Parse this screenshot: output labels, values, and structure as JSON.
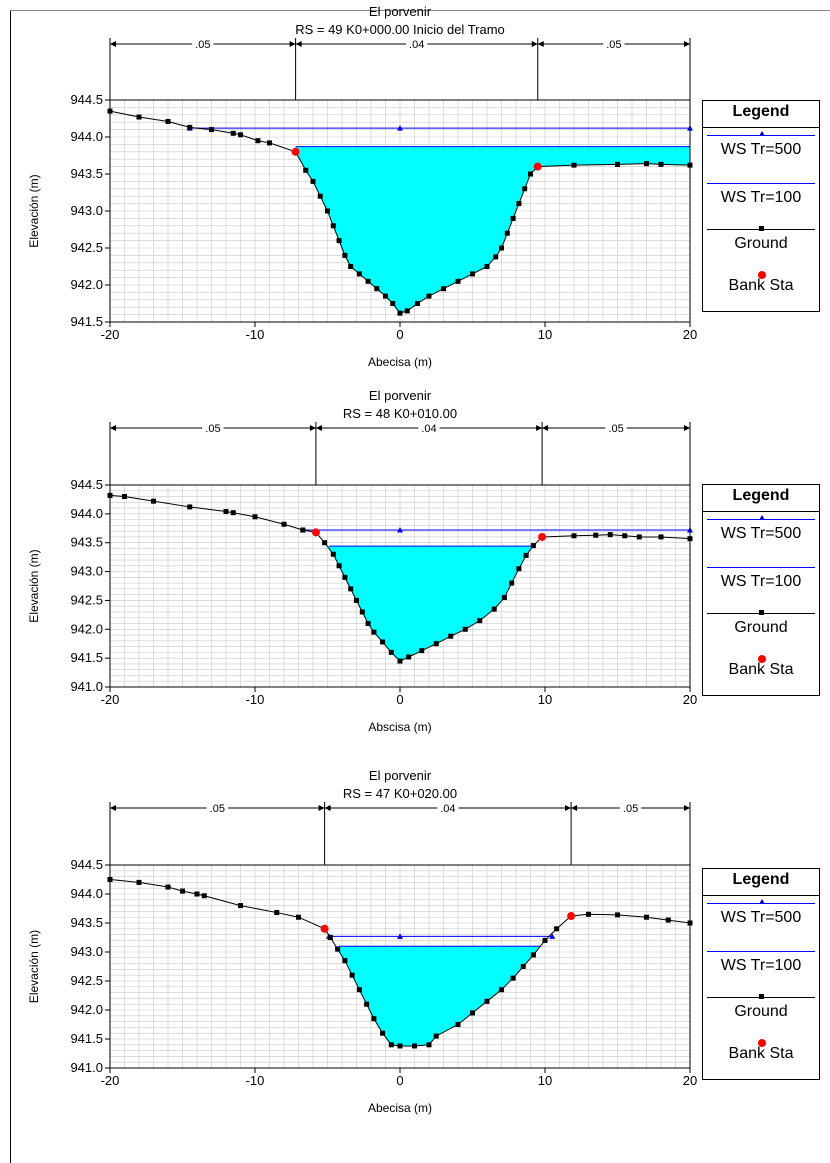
{
  "colors": {
    "water_fill": "#00ffff",
    "ws500": "#0000ff",
    "ws100": "#0000ff",
    "ground": "#000000",
    "bank": "#ff0000",
    "grid": "#c8c8c8"
  },
  "legend": {
    "title": "Legend",
    "items": [
      {
        "label": "WS Tr=500",
        "icon": "blue-line-triangle-marker"
      },
      {
        "label": "WS Tr=100",
        "icon": "blue-line"
      },
      {
        "label": "Ground",
        "icon": "black-line-square-marker"
      },
      {
        "label": "Bank Sta",
        "icon": "red-dot"
      }
    ]
  },
  "chart_data": [
    {
      "type": "area",
      "title": "El porvenir",
      "subtitle": "RS = 49  K0+000.00 Inicio del Tramo",
      "xlabel": "Abecisa (m)",
      "ylabel": "Elevación (m)",
      "xlim": [
        -20,
        20
      ],
      "ylim": [
        941.5,
        944.5
      ],
      "xticks": [
        "-20",
        "-10",
        "0",
        "10",
        "20"
      ],
      "yticks": [
        "941.5",
        "942.0",
        "942.5",
        "943.0",
        "943.5",
        "944.0",
        "944.5"
      ],
      "manning": [
        {
          "from": -20,
          "to": -7.2,
          "label": ".05"
        },
        {
          "from": -7.2,
          "to": 9.5,
          "label": ".04"
        },
        {
          "from": 9.5,
          "to": 20,
          "label": ".05"
        }
      ],
      "ws500": 944.12,
      "ws500_x": [
        -14.5,
        20
      ],
      "ws500_markers": [
        -14.5,
        0,
        20
      ],
      "ws100": 943.87,
      "ws100_x": [
        -7.2,
        20
      ],
      "ground": [
        [
          -20,
          944.35
        ],
        [
          -18,
          944.27
        ],
        [
          -16,
          944.21
        ],
        [
          -14.5,
          944.13
        ],
        [
          -13,
          944.1
        ],
        [
          -11.5,
          944.05
        ],
        [
          -11,
          944.03
        ],
        [
          -9.8,
          943.95
        ],
        [
          -9,
          943.92
        ],
        [
          -7.2,
          943.8
        ],
        [
          -6.5,
          943.55
        ],
        [
          -6,
          943.4
        ],
        [
          -5.5,
          943.2
        ],
        [
          -5,
          943.0
        ],
        [
          -4.6,
          942.8
        ],
        [
          -4.2,
          942.6
        ],
        [
          -3.8,
          942.4
        ],
        [
          -3.4,
          942.25
        ],
        [
          -2.8,
          942.15
        ],
        [
          -2.2,
          942.05
        ],
        [
          -1.6,
          941.95
        ],
        [
          -1,
          941.85
        ],
        [
          -0.5,
          941.75
        ],
        [
          0,
          941.62
        ],
        [
          0.5,
          941.65
        ],
        [
          1.2,
          941.75
        ],
        [
          2,
          941.85
        ],
        [
          3,
          941.95
        ],
        [
          4,
          942.05
        ],
        [
          5,
          942.15
        ],
        [
          6,
          942.25
        ],
        [
          6.6,
          942.38
        ],
        [
          7,
          942.5
        ],
        [
          7.4,
          942.7
        ],
        [
          7.8,
          942.9
        ],
        [
          8.2,
          943.1
        ],
        [
          8.6,
          943.3
        ],
        [
          9,
          943.5
        ],
        [
          9.5,
          943.6
        ],
        [
          12,
          943.62
        ],
        [
          15,
          943.63
        ],
        [
          17,
          943.64
        ],
        [
          18,
          943.63
        ],
        [
          20,
          943.62
        ]
      ],
      "bank_stations": [
        [
          -7.2,
          943.8
        ],
        [
          9.5,
          943.6
        ]
      ]
    },
    {
      "type": "area",
      "title": "El porvenir",
      "subtitle": "RS = 48  K0+010.00",
      "xlabel": "Abscisa (m)",
      "ylabel": "Elevación (m)",
      "xlim": [
        -20,
        20
      ],
      "ylim": [
        941.0,
        944.5
      ],
      "xticks": [
        "-20",
        "-10",
        "0",
        "10",
        "20"
      ],
      "yticks": [
        "941.0",
        "941.5",
        "942.0",
        "942.5",
        "943.0",
        "943.5",
        "944.0",
        "944.5"
      ],
      "manning": [
        {
          "from": -20,
          "to": -5.8,
          "label": ".05"
        },
        {
          "from": -5.8,
          "to": 9.8,
          "label": ".04"
        },
        {
          "from": 9.8,
          "to": 20,
          "label": ".05"
        }
      ],
      "ws500": 943.72,
      "ws500_x": [
        -6.7,
        20
      ],
      "ws500_markers": [
        -6.7,
        0,
        20
      ],
      "ws100": 943.44,
      "ws100_x": [
        -4.9,
        9.1
      ],
      "ground": [
        [
          -20,
          944.32
        ],
        [
          -19,
          944.3
        ],
        [
          -17,
          944.22
        ],
        [
          -14.5,
          944.12
        ],
        [
          -12,
          944.04
        ],
        [
          -11.5,
          944.02
        ],
        [
          -10,
          943.95
        ],
        [
          -8,
          943.82
        ],
        [
          -6.7,
          943.72
        ],
        [
          -5.8,
          943.68
        ],
        [
          -5.2,
          943.5
        ],
        [
          -4.6,
          943.3
        ],
        [
          -4.2,
          943.1
        ],
        [
          -3.8,
          942.9
        ],
        [
          -3.4,
          942.7
        ],
        [
          -3,
          942.5
        ],
        [
          -2.6,
          942.3
        ],
        [
          -2.2,
          942.1
        ],
        [
          -1.8,
          941.95
        ],
        [
          -1.2,
          941.78
        ],
        [
          -0.6,
          941.6
        ],
        [
          0,
          941.45
        ],
        [
          0.6,
          941.52
        ],
        [
          1.5,
          941.63
        ],
        [
          2.5,
          941.75
        ],
        [
          3.5,
          941.88
        ],
        [
          4.5,
          942.0
        ],
        [
          5.5,
          942.15
        ],
        [
          6.5,
          942.35
        ],
        [
          7.2,
          942.55
        ],
        [
          7.7,
          942.8
        ],
        [
          8.2,
          943.05
        ],
        [
          8.7,
          943.28
        ],
        [
          9.2,
          943.45
        ],
        [
          9.8,
          943.6
        ],
        [
          12,
          943.62
        ],
        [
          13.5,
          943.63
        ],
        [
          14.5,
          943.64
        ],
        [
          15.5,
          943.62
        ],
        [
          16.5,
          943.6
        ],
        [
          18,
          943.6
        ],
        [
          20,
          943.57
        ]
      ],
      "bank_stations": [
        [
          -5.8,
          943.68
        ],
        [
          9.8,
          943.6
        ]
      ]
    },
    {
      "type": "area",
      "title": "El porvenir",
      "subtitle": "RS = 47  K0+020.00",
      "xlabel": "Abecisa (m)",
      "ylabel": "Elevación (m)",
      "xlim": [
        -20,
        20
      ],
      "ylim": [
        941.0,
        944.5
      ],
      "xticks": [
        "-20",
        "-10",
        "0",
        "10",
        "20"
      ],
      "yticks": [
        "941.0",
        "941.5",
        "942.0",
        "942.5",
        "943.0",
        "943.5",
        "944.0",
        "944.5"
      ],
      "manning": [
        {
          "from": -20,
          "to": -5.2,
          "label": ".05"
        },
        {
          "from": -5.2,
          "to": 11.8,
          "label": ".04"
        },
        {
          "from": 11.8,
          "to": 20,
          "label": ".05"
        }
      ],
      "ws500": 943.27,
      "ws500_x": [
        -4.9,
        10.5
      ],
      "ws500_markers": [
        -4.9,
        0,
        10.5
      ],
      "ws100": 943.1,
      "ws100_x": [
        -4.2,
        9.7
      ],
      "ground": [
        [
          -20,
          944.25
        ],
        [
          -18,
          944.2
        ],
        [
          -16,
          944.12
        ],
        [
          -15,
          944.05
        ],
        [
          -14,
          944.0
        ],
        [
          -13.5,
          943.97
        ],
        [
          -11,
          943.8
        ],
        [
          -8.5,
          943.68
        ],
        [
          -7,
          943.6
        ],
        [
          -5.2,
          943.4
        ],
        [
          -4.8,
          943.25
        ],
        [
          -4.3,
          943.05
        ],
        [
          -3.8,
          942.85
        ],
        [
          -3.3,
          942.6
        ],
        [
          -2.8,
          942.35
        ],
        [
          -2.3,
          942.1
        ],
        [
          -1.8,
          941.85
        ],
        [
          -1.2,
          941.6
        ],
        [
          -0.6,
          941.4
        ],
        [
          0,
          941.38
        ],
        [
          1,
          941.38
        ],
        [
          2,
          941.4
        ],
        [
          2.5,
          941.55
        ],
        [
          4,
          941.75
        ],
        [
          5,
          941.95
        ],
        [
          6,
          942.15
        ],
        [
          7,
          942.35
        ],
        [
          7.8,
          942.55
        ],
        [
          8.5,
          942.75
        ],
        [
          9.2,
          942.95
        ],
        [
          10,
          943.2
        ],
        [
          10.8,
          943.4
        ],
        [
          11.8,
          943.62
        ],
        [
          13,
          943.65
        ],
        [
          15,
          943.64
        ],
        [
          17,
          943.6
        ],
        [
          18.5,
          943.55
        ],
        [
          20,
          943.5
        ]
      ],
      "bank_stations": [
        [
          -5.2,
          943.4
        ],
        [
          11.8,
          943.62
        ]
      ]
    }
  ]
}
